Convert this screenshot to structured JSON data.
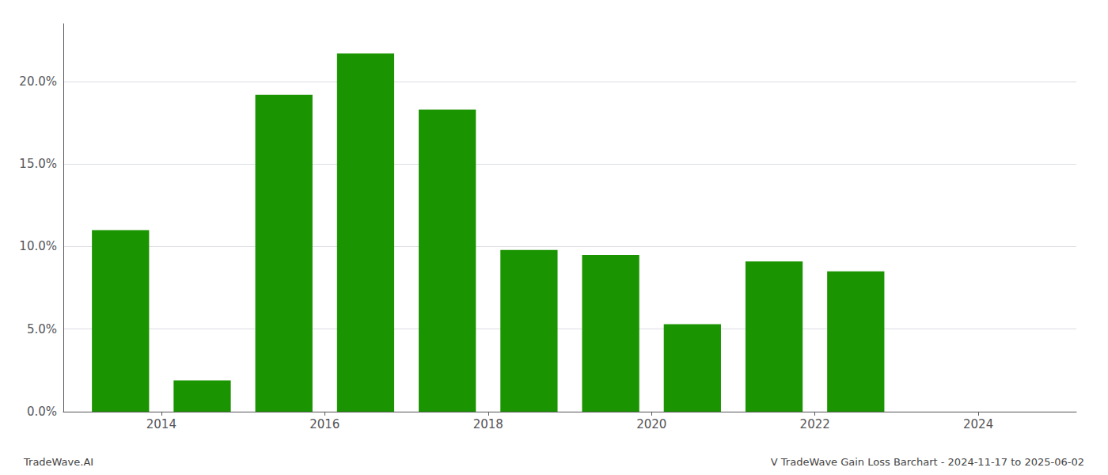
{
  "chart_data": {
    "type": "bar",
    "x": [
      2013,
      2014,
      2015,
      2016,
      2017,
      2018,
      2019,
      2020,
      2021,
      2022,
      2023
    ],
    "values": [
      0.11,
      0.019,
      0.192,
      0.217,
      0.183,
      0.098,
      0.095,
      0.053,
      0.091,
      0.085,
      0.0
    ],
    "color": "#1a9400",
    "xlim": [
      2012.3,
      2024.7
    ],
    "xticks": [
      {
        "value": 2013.5,
        "label": "2014"
      },
      {
        "value": 2015.5,
        "label": "2016"
      },
      {
        "value": 2017.5,
        "label": "2018"
      },
      {
        "value": 2019.5,
        "label": "2020"
      },
      {
        "value": 2021.5,
        "label": "2022"
      },
      {
        "value": 2023.5,
        "label": "2024"
      }
    ],
    "ylim": [
      0,
      0.235
    ],
    "yticks": [
      {
        "value": 0.0,
        "label": "0.0%"
      },
      {
        "value": 0.05,
        "label": "5.0%"
      },
      {
        "value": 0.1,
        "label": "10.0%"
      },
      {
        "value": 0.15,
        "label": "15.0%"
      },
      {
        "value": 0.2,
        "label": "20.0%"
      }
    ],
    "grid": true,
    "annotations": [
      "TradeWave.AI",
      "V TradeWave Gain Loss Barchart - 2024-11-17 to 2025-06-02"
    ]
  }
}
